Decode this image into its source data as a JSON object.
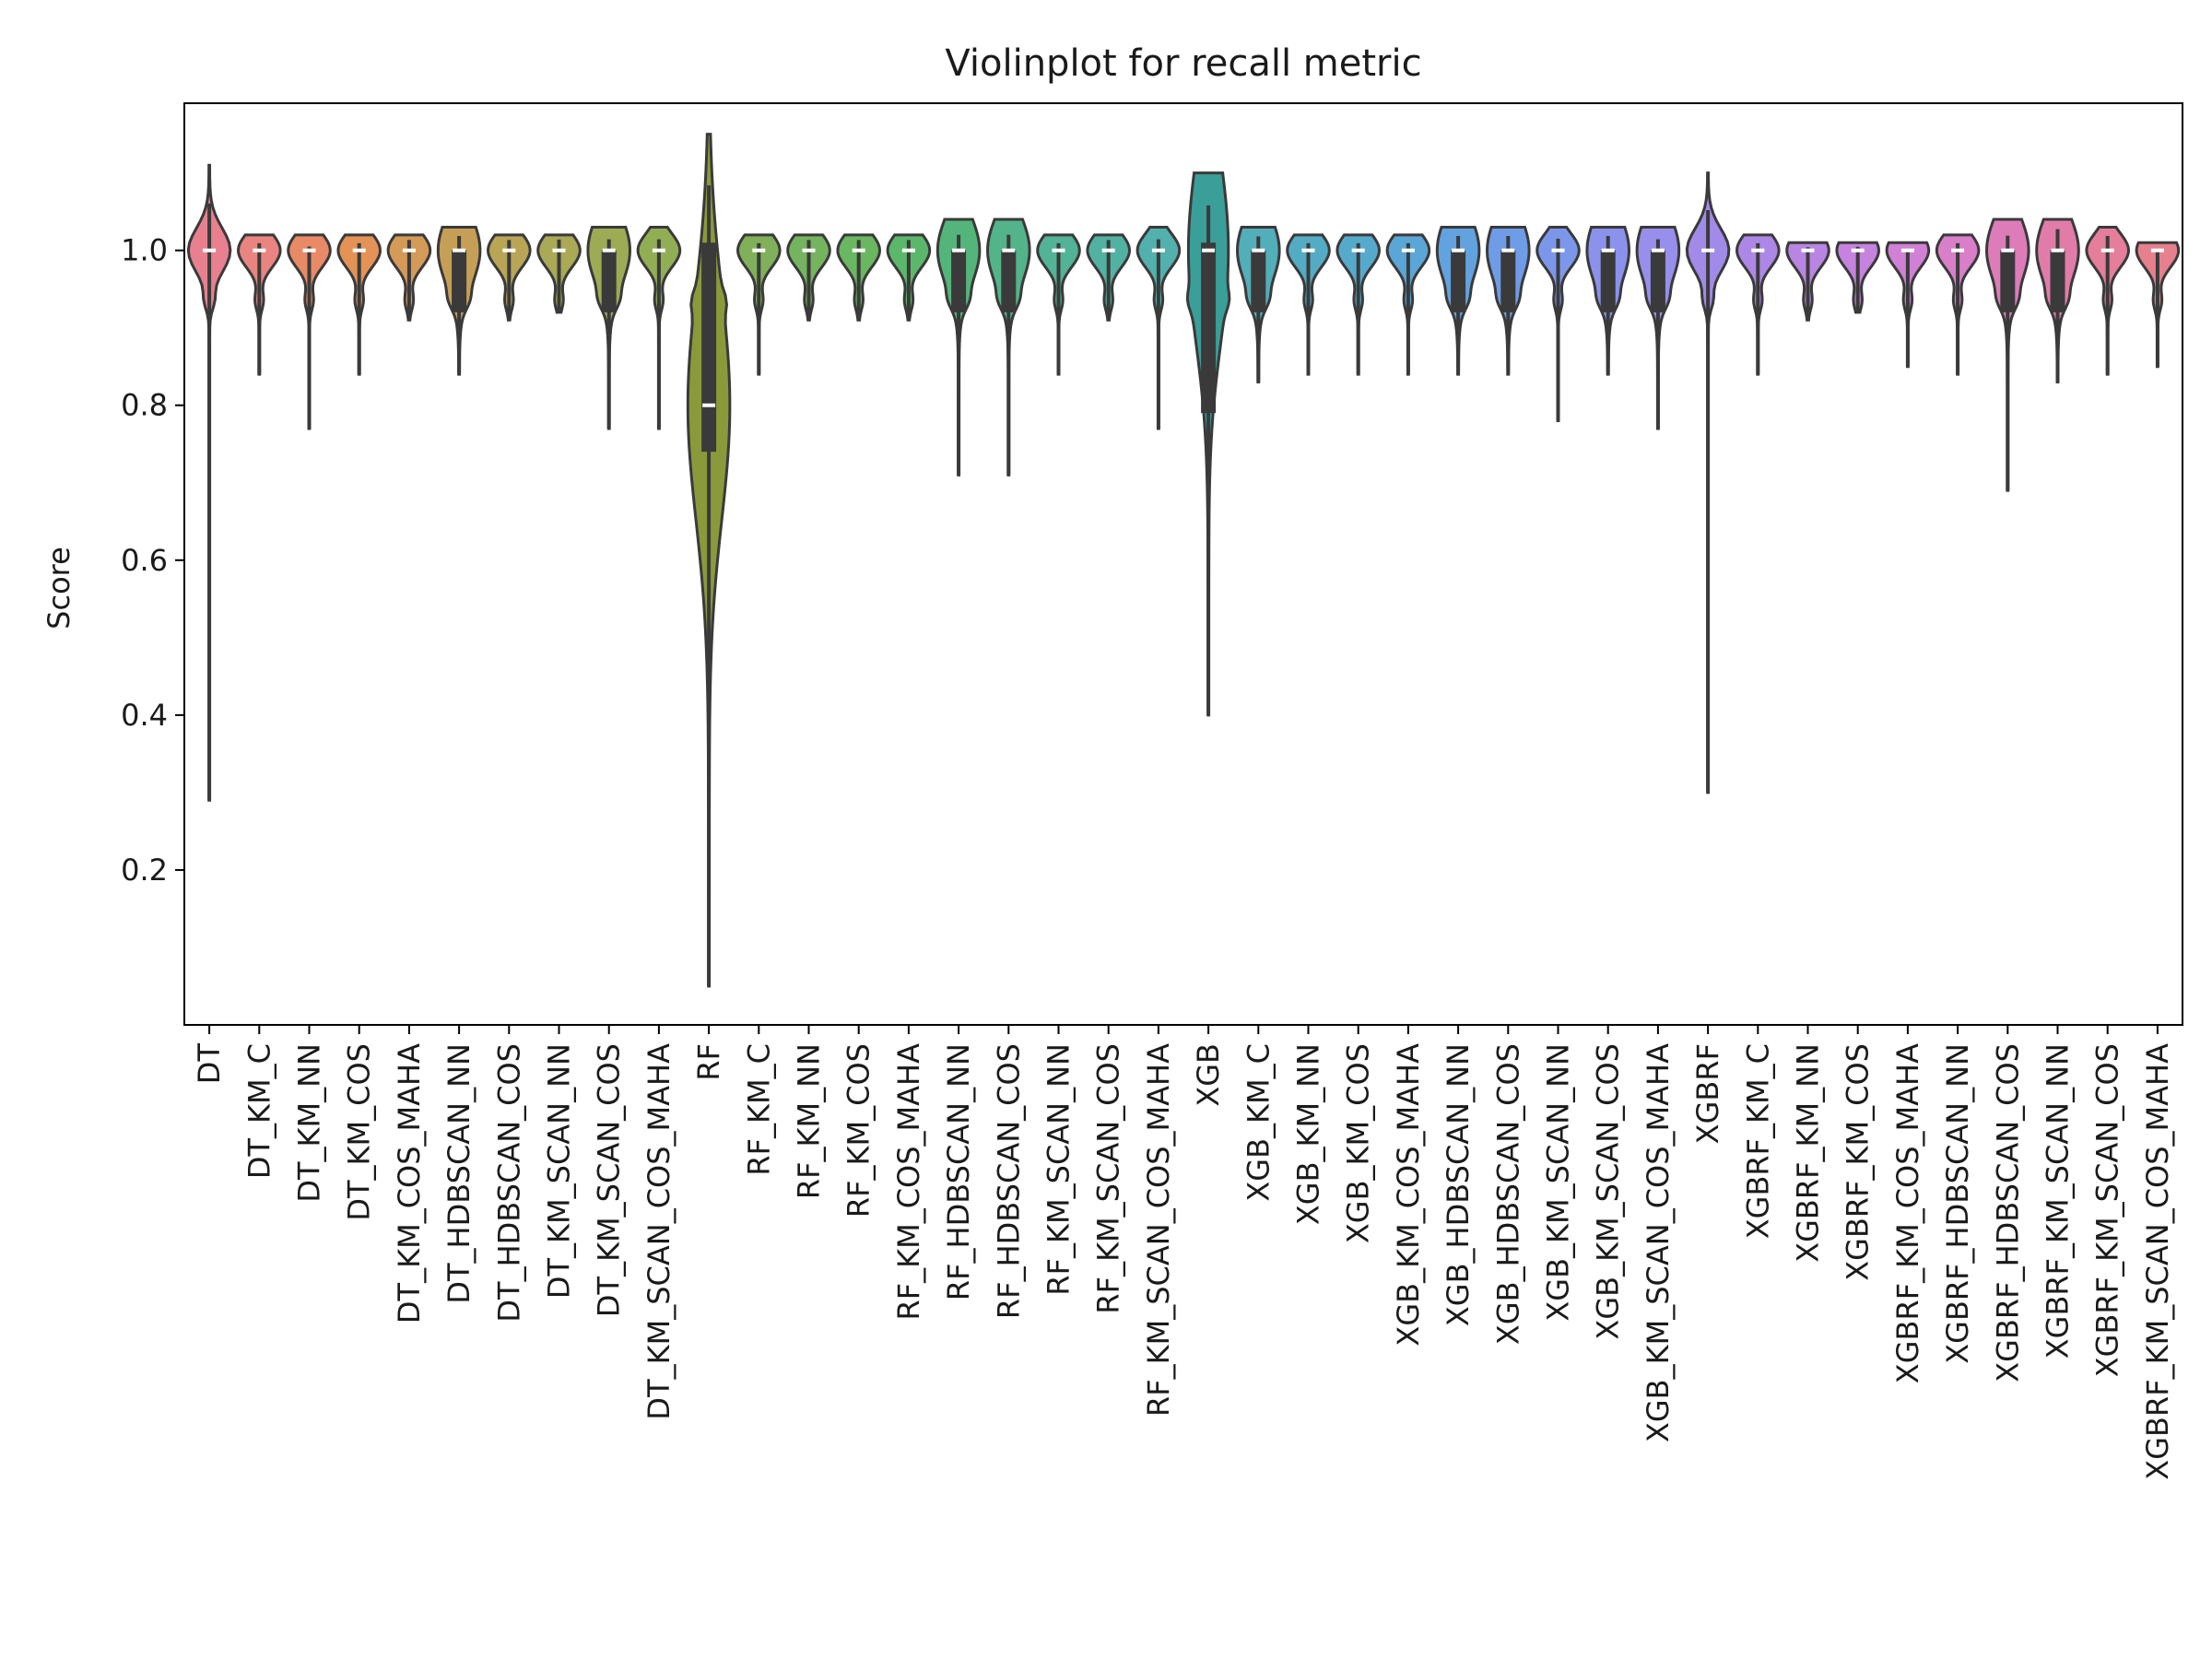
{
  "chart_data": {
    "type": "violin",
    "title": "Violinplot for recall metric",
    "xlabel": "",
    "ylabel": "Score",
    "ylim": [
      0.0,
      1.19
    ],
    "yticks": [
      0.2,
      0.4,
      0.6,
      0.8,
      1.0
    ],
    "grid": false,
    "legend": "none",
    "categories": [
      "DT",
      "DT_KM_C",
      "DT_KM_NN",
      "DT_KM_COS",
      "DT_KM_COS_MAHA",
      "DT_HDBSCAN_NN",
      "DT_HDBSCAN_COS",
      "DT_KM_SCAN_NN",
      "DT_KM_SCAN_COS",
      "DT_KM_SCAN_COS_MAHA",
      "RF",
      "RF_KM_C",
      "RF_KM_NN",
      "RF_KM_COS",
      "RF_KM_COS_MAHA",
      "RF_HDBSCAN_NN",
      "RF_HDBSCAN_COS",
      "RF_KM_SCAN_NN",
      "RF_KM_SCAN_COS",
      "RF_KM_SCAN_COS_MAHA",
      "XGB",
      "XGB_KM_C",
      "XGB_KM_NN",
      "XGB_KM_COS",
      "XGB_KM_COS_MAHA",
      "XGB_HDBSCAN_NN",
      "XGB_HDBSCAN_COS",
      "XGB_KM_SCAN_NN",
      "XGB_KM_SCAN_COS",
      "XGB_KM_SCAN_COS_MAHA",
      "XGBRF",
      "XGBRF_KM_C",
      "XGBRF_KM_NN",
      "XGBRF_KM_COS",
      "XGBRF_KM_COS_MAHA",
      "XGBRF_HDBSCAN_NN",
      "XGBRF_HDBSCAN_COS",
      "XGBRF_KM_SCAN_NN",
      "XGBRF_KM_SCAN_COS",
      "XGBRF_KM_SCAN_COS_MAHA"
    ],
    "colors": [
      "#e8808f",
      "#ea8480",
      "#e88a66",
      "#e59257",
      "#d49a57",
      "#c69f56",
      "#b8a556",
      "#a9a956",
      "#9dab54",
      "#92ae54",
      "#8a9a3a",
      "#80b05a",
      "#74b45e",
      "#6ab762",
      "#5bb86a",
      "#54b57a",
      "#53b48a",
      "#52b396",
      "#52b2a2",
      "#52b0ad",
      "#3a9e99",
      "#52aeb9",
      "#53acc4",
      "#55aacc",
      "#5aa6d6",
      "#62a2df",
      "#6f9ce6",
      "#7c97ea",
      "#8a92ec",
      "#988eec",
      "#a28ae8",
      "#ad87e6",
      "#b985e3",
      "#c682df",
      "#d080d5",
      "#d97ec9",
      "#de7cba",
      "#e17ca9",
      "#e47e9a",
      "#e6808e"
    ],
    "stats": [
      {
        "min": 0.29,
        "max": 1.11,
        "q1": 1.0,
        "median": 1.0,
        "q3": 1.0
      },
      {
        "min": 0.84,
        "max": 1.02,
        "q1": 1.0,
        "median": 1.0,
        "q3": 1.0
      },
      {
        "min": 0.77,
        "max": 1.02,
        "q1": 1.0,
        "median": 1.0,
        "q3": 1.0
      },
      {
        "min": 0.84,
        "max": 1.02,
        "q1": 1.0,
        "median": 1.0,
        "q3": 1.0
      },
      {
        "min": 0.91,
        "max": 1.02,
        "q1": 1.0,
        "median": 1.0,
        "q3": 1.0
      },
      {
        "min": 0.84,
        "max": 1.03,
        "q1": 0.92,
        "median": 1.0,
        "q3": 1.0
      },
      {
        "min": 0.91,
        "max": 1.02,
        "q1": 1.0,
        "median": 1.0,
        "q3": 1.0
      },
      {
        "min": 0.92,
        "max": 1.02,
        "q1": 1.0,
        "median": 1.0,
        "q3": 1.0
      },
      {
        "min": 0.77,
        "max": 1.03,
        "q1": 0.92,
        "median": 1.0,
        "q3": 1.0
      },
      {
        "min": 0.77,
        "max": 1.03,
        "q1": 1.0,
        "median": 1.0,
        "q3": 1.0
      },
      {
        "min": 0.05,
        "max": 1.15,
        "q1": 0.74,
        "median": 0.8,
        "q3": 1.01
      },
      {
        "min": 0.84,
        "max": 1.02,
        "q1": 1.0,
        "median": 1.0,
        "q3": 1.0
      },
      {
        "min": 0.91,
        "max": 1.02,
        "q1": 1.0,
        "median": 1.0,
        "q3": 1.0
      },
      {
        "min": 0.91,
        "max": 1.02,
        "q1": 1.0,
        "median": 1.0,
        "q3": 1.0
      },
      {
        "min": 0.91,
        "max": 1.02,
        "q1": 1.0,
        "median": 1.0,
        "q3": 1.0
      },
      {
        "min": 0.71,
        "max": 1.04,
        "q1": 0.92,
        "median": 1.0,
        "q3": 1.0
      },
      {
        "min": 0.71,
        "max": 1.04,
        "q1": 0.92,
        "median": 1.0,
        "q3": 1.0
      },
      {
        "min": 0.84,
        "max": 1.02,
        "q1": 1.0,
        "median": 1.0,
        "q3": 1.0
      },
      {
        "min": 0.91,
        "max": 1.02,
        "q1": 1.0,
        "median": 1.0,
        "q3": 1.0
      },
      {
        "min": 0.77,
        "max": 1.03,
        "q1": 1.0,
        "median": 1.0,
        "q3": 1.0
      },
      {
        "min": 0.4,
        "max": 1.1,
        "q1": 0.79,
        "median": 1.0,
        "q3": 1.01
      },
      {
        "min": 0.83,
        "max": 1.03,
        "q1": 0.92,
        "median": 1.0,
        "q3": 1.0
      },
      {
        "min": 0.84,
        "max": 1.02,
        "q1": 1.0,
        "median": 1.0,
        "q3": 1.0
      },
      {
        "min": 0.84,
        "max": 1.02,
        "q1": 1.0,
        "median": 1.0,
        "q3": 1.0
      },
      {
        "min": 0.84,
        "max": 1.02,
        "q1": 1.0,
        "median": 1.0,
        "q3": 1.0
      },
      {
        "min": 0.84,
        "max": 1.03,
        "q1": 0.92,
        "median": 1.0,
        "q3": 1.0
      },
      {
        "min": 0.84,
        "max": 1.03,
        "q1": 0.92,
        "median": 1.0,
        "q3": 1.0
      },
      {
        "min": 0.78,
        "max": 1.03,
        "q1": 1.0,
        "median": 1.0,
        "q3": 1.0
      },
      {
        "min": 0.84,
        "max": 1.03,
        "q1": 0.92,
        "median": 1.0,
        "q3": 1.0
      },
      {
        "min": 0.77,
        "max": 1.03,
        "q1": 0.92,
        "median": 1.0,
        "q3": 1.0
      },
      {
        "min": 0.3,
        "max": 1.1,
        "q1": 1.0,
        "median": 1.0,
        "q3": 1.0
      },
      {
        "min": 0.84,
        "max": 1.02,
        "q1": 1.0,
        "median": 1.0,
        "q3": 1.0
      },
      {
        "min": 0.91,
        "max": 1.01,
        "q1": 1.0,
        "median": 1.0,
        "q3": 1.0
      },
      {
        "min": 0.92,
        "max": 1.01,
        "q1": 1.0,
        "median": 1.0,
        "q3": 1.0
      },
      {
        "min": 0.85,
        "max": 1.01,
        "q1": 1.0,
        "median": 1.0,
        "q3": 1.0
      },
      {
        "min": 0.84,
        "max": 1.02,
        "q1": 1.0,
        "median": 1.0,
        "q3": 1.0
      },
      {
        "min": 0.69,
        "max": 1.04,
        "q1": 0.92,
        "median": 1.0,
        "q3": 1.0
      },
      {
        "min": 0.83,
        "max": 1.04,
        "q1": 0.92,
        "median": 1.0,
        "q3": 1.0
      },
      {
        "min": 0.84,
        "max": 1.03,
        "q1": 1.0,
        "median": 1.0,
        "q3": 1.0
      },
      {
        "min": 0.85,
        "max": 1.01,
        "q1": 1.0,
        "median": 1.0,
        "q3": 1.0
      }
    ]
  }
}
